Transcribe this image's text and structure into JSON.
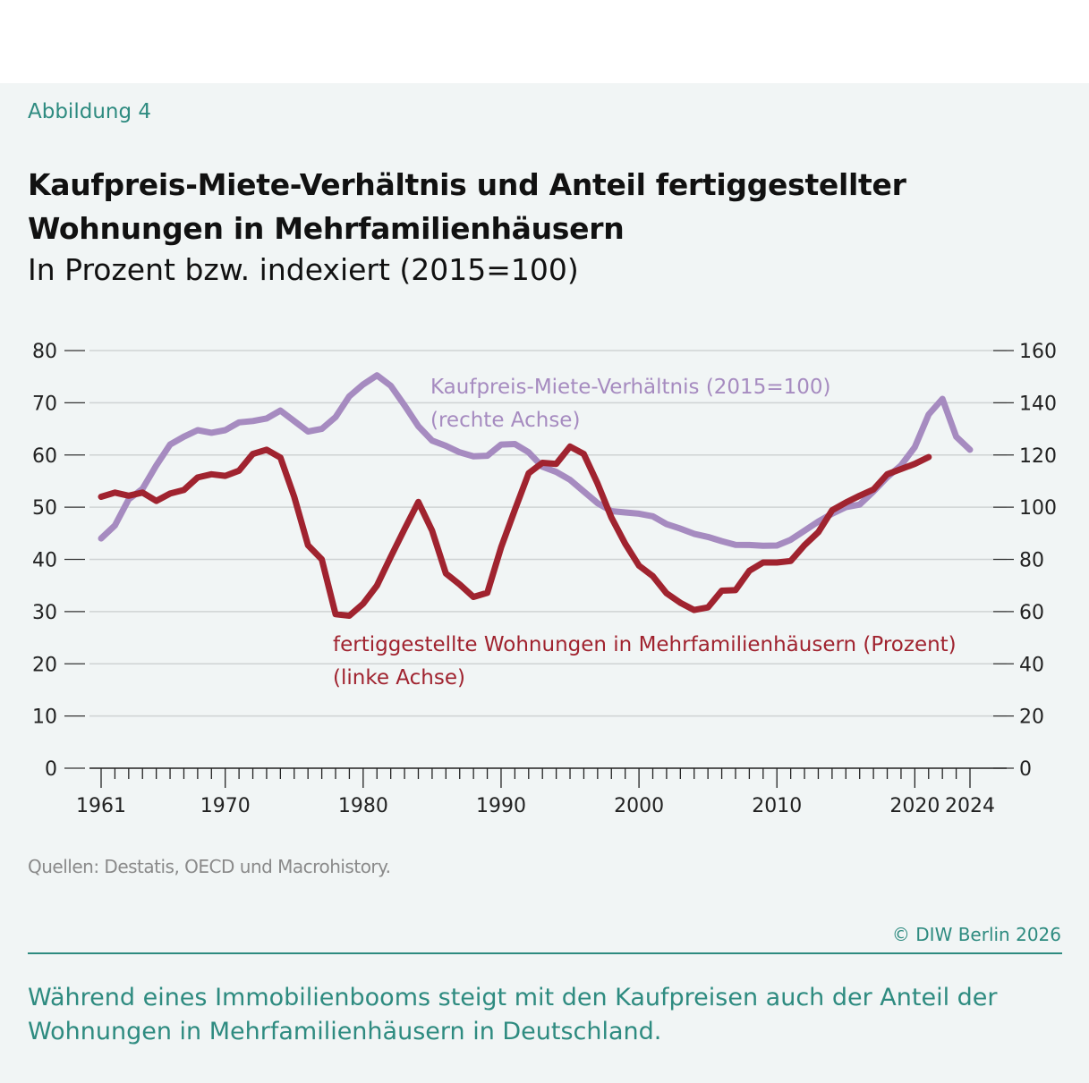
{
  "figure_label": "Abbildung 4",
  "title": "Kaufpreis-Miete-Verhältnis und Anteil fertiggestellter Wohnungen in Mehrfamilienhäusern",
  "subtitle": "In Prozent bzw. indexiert (2015=100)",
  "source": "Quellen: Destatis, OECD und Macrohistory.",
  "copyright": "© DIW Berlin 2026",
  "caption": "Während eines Immobilienbooms steigt mit den Kaufpreisen auch der Anteil der Wohnungen in Mehrfamilienhäusern in Deutschland.",
  "colors": {
    "red": "#a0232f",
    "purple": "#a68bc0",
    "teal": "#2e8b80",
    "background": "#f1f5f5"
  },
  "chart_data": {
    "type": "line",
    "xlim": [
      1961,
      2024
    ],
    "x_tick_labels": [
      "1961",
      "1970",
      "1980",
      "1990",
      "2000",
      "2010",
      "2020",
      "2024"
    ],
    "y_left": {
      "ylim": [
        0,
        80
      ],
      "ticks": [
        "0",
        "10",
        "20",
        "30",
        "40",
        "50",
        "60",
        "70",
        "80"
      ]
    },
    "y_right": {
      "ylim": [
        0,
        160
      ],
      "ticks": [
        "0",
        "20",
        "40",
        "60",
        "80",
        "100",
        "120",
        "140",
        "160"
      ]
    },
    "grid": true,
    "series": [
      {
        "name": "Kaufpreis-Miete-Verhältnis (2015=100)",
        "name_line2": "(rechte Achse)",
        "axis": "right",
        "color": "#a68bc0",
        "start_year": 1961,
        "values": [
          88,
          93,
          103,
          107,
          116,
          124,
          127,
          129.5,
          128.5,
          129.5,
          132.5,
          133,
          134,
          137,
          133,
          129,
          130,
          134.5,
          142.5,
          147,
          150.5,
          146.5,
          139,
          131,
          125.5,
          123.5,
          121,
          119.5,
          119.7,
          124,
          124.2,
          121,
          115.5,
          113.5,
          110.5,
          106,
          101.5,
          98.5,
          98,
          97.5,
          96.5,
          93.5,
          91.8,
          89.8,
          88.6,
          87,
          85.6,
          85.5,
          85.2,
          85.3,
          87.5,
          91,
          94.5,
          97.5,
          100,
          101,
          106,
          111.5,
          116,
          123,
          135.5,
          141.5,
          127,
          122
        ]
      },
      {
        "name": "fertiggestellte Wohnungen in Mehrfamilienhäusern (Prozent)",
        "name_line2": "(linke Achse)",
        "axis": "left",
        "color": "#a0232f",
        "start_year": 1961,
        "values": [
          52,
          52.8,
          52.2,
          52.8,
          51.2,
          52.6,
          53.3,
          55.7,
          56.3,
          56,
          57,
          60.2,
          61,
          59.5,
          52,
          42.7,
          40,
          29.5,
          29.2,
          31.5,
          35,
          40.5,
          45.8,
          51,
          45.5,
          37.3,
          35.2,
          32.8,
          33.6,
          42.3,
          49.5,
          56.5,
          58.5,
          58.3,
          61.6,
          60.2,
          54.5,
          48,
          43,
          38.8,
          36.8,
          33.5,
          31.7,
          30.3,
          30.8,
          34,
          34.1,
          37.8,
          39.4,
          39.4,
          39.7,
          42.7,
          45.2,
          49.4,
          50.9,
          52.2,
          53.4,
          56.3,
          57.3,
          58.3,
          59.6
        ]
      }
    ]
  }
}
